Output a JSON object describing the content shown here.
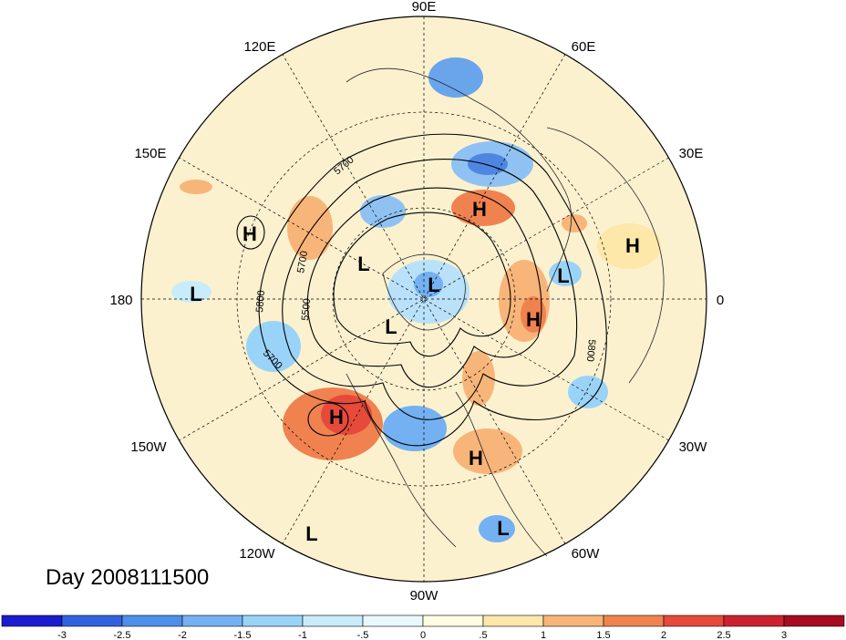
{
  "date_label": "Day 2008111500",
  "longitude_labels": [
    "90E",
    "60E",
    "30E",
    "0",
    "30W",
    "60W",
    "90W",
    "120W",
    "150W",
    "180",
    "150E",
    "120E"
  ],
  "pressure_systems": [
    {
      "type": "H",
      "lon": 150,
      "lat": 45
    },
    {
      "type": "L",
      "lon": 180,
      "lat": 40
    },
    {
      "type": "L",
      "lon": 130,
      "lat": 70
    },
    {
      "type": "H",
      "lon": 70,
      "lat": 60
    },
    {
      "type": "H",
      "lon": 35,
      "lat": 45
    },
    {
      "type": "L",
      "lon": 15,
      "lat": 52
    },
    {
      "type": "H",
      "lon": -10,
      "lat": 62
    },
    {
      "type": "L",
      "lon": 75,
      "lat": 85
    },
    {
      "type": "L",
      "lon": -150,
      "lat": 80
    },
    {
      "type": "H",
      "lon": -130,
      "lat": 50
    },
    {
      "type": "H",
      "lon": -50,
      "lat": 45
    },
    {
      "type": "L",
      "lon": -60,
      "lat": 15
    },
    {
      "type": "L",
      "lon": -120,
      "lat": 10
    }
  ],
  "contour_labels": [
    "5700",
    "5700",
    "5800",
    "5500",
    "5700",
    "5800"
  ],
  "colorbar": {
    "ticks": [
      "-3",
      "-2.5",
      "-2",
      "-1.5",
      "-1",
      "-.5",
      "0",
      ".5",
      "1",
      "1.5",
      "2",
      "2.5",
      "3"
    ],
    "colors": [
      "#1c1ccf",
      "#2f63e0",
      "#4e8fea",
      "#73b1f2",
      "#9ad3f8",
      "#c9ecfb",
      "#e9f8fc",
      "#fffce3",
      "#fde7a9",
      "#f8b57a",
      "#f0824f",
      "#e64a3b",
      "#cc2230",
      "#a50c1f"
    ]
  }
}
